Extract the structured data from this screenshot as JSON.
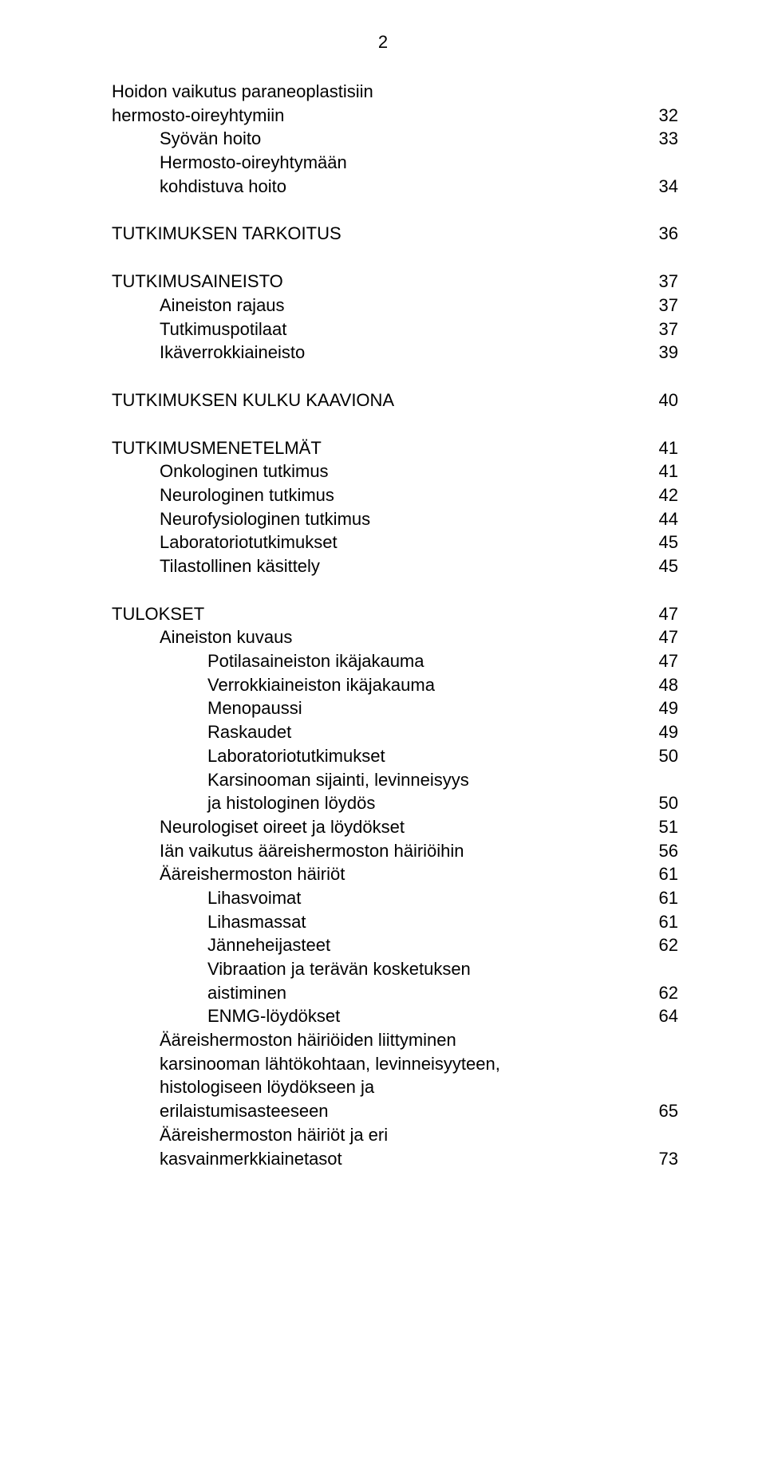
{
  "page_number": "2",
  "typography": {
    "font_family": "Arial, Helvetica, sans-serif",
    "font_size_pt": 22,
    "color": "#000000",
    "background": "#ffffff",
    "line_height": 1.35
  },
  "toc": {
    "s1_l1": "Hoidon vaikutus paraneoplastisiin",
    "s1_l2": "hermosto-oireyhtymiin",
    "s1_p": "32",
    "s1_a": "Syövän hoito",
    "s1_a_p": "33",
    "s1_b1": "Hermosto-oireyhtymään",
    "s1_b2": "kohdistuva hoito",
    "s1_b_p": "34",
    "s2": "TUTKIMUKSEN TARKOITUS",
    "s2_p": "36",
    "s3": "TUTKIMUSAINEISTO",
    "s3_p": "37",
    "s3_a": "Aineiston rajaus",
    "s3_a_p": "37",
    "s3_b": "Tutkimuspotilaat",
    "s3_b_p": "37",
    "s3_c": "Ikäverrokkiaineisto",
    "s3_c_p": "39",
    "s4": "TUTKIMUKSEN  KULKU  KAAVIONA",
    "s4_p": "40",
    "s5": "TUTKIMUSMENETELMÄT",
    "s5_p": "41",
    "s5_a": "Onkologinen tutkimus",
    "s5_a_p": "41",
    "s5_b": "Neurologinen tutkimus",
    "s5_b_p": "42",
    "s5_c": "Neurofysiologinen tutkimus",
    "s5_c_p": "44",
    "s5_d": "Laboratoriotutkimukset",
    "s5_d_p": "45",
    "s5_e": "Tilastollinen käsittely",
    "s5_e_p": "45",
    "s6": "TULOKSET",
    "s6_p": "47",
    "s6_a": "Aineiston kuvaus",
    "s6_a_p": "47",
    "s6_a1": "Potilasaineiston ikäjakauma",
    "s6_a1_p": "47",
    "s6_a2": "Verrokkiaineiston ikäjakauma",
    "s6_a2_p": "48",
    "s6_a3": "Menopaussi",
    "s6_a3_p": "49",
    "s6_a4": "Raskaudet",
    "s6_a4_p": "49",
    "s6_a5": "Laboratoriotutkimukset",
    "s6_a5_p": "50",
    "s6_a6_1": "Karsinooman sijainti, levinneisyys",
    "s6_a6_2": "ja histologinen löydös",
    "s6_a6_p": "50",
    "s6_b": "Neurologiset oireet ja löydökset",
    "s6_b_p": "51",
    "s6_c": "Iän vaikutus ääreishermoston häiriöihin",
    "s6_c_p": "56",
    "s6_d": "Ääreishermoston häiriöt",
    "s6_d_p": "61",
    "s6_d1": "Lihasvoimat",
    "s6_d1_p": "61",
    "s6_d2": "Lihasmassat",
    "s6_d2_p": "61",
    "s6_d3": "Jänneheijasteet",
    "s6_d3_p": "62",
    "s6_d4_1": "Vibraation ja terävän kosketuksen",
    "s6_d4_2": "aistiminen",
    "s6_d4_p": "62",
    "s6_d5": "ENMG-löydökset",
    "s6_d5_p": "64",
    "s6_e1": "Ääreishermoston häiriöiden liittyminen",
    "s6_e2": "karsinooman lähtökohtaan, levinneisyyteen,",
    "s6_e3": "histologiseen löydökseen ja",
    "s6_e4": "erilaistumisasteeseen",
    "s6_e_p": "65",
    "s6_f1": "Ääreishermoston häiriöt ja eri",
    "s6_f2": "kasvainmerkkiainetasot",
    "s6_f_p": "73"
  }
}
